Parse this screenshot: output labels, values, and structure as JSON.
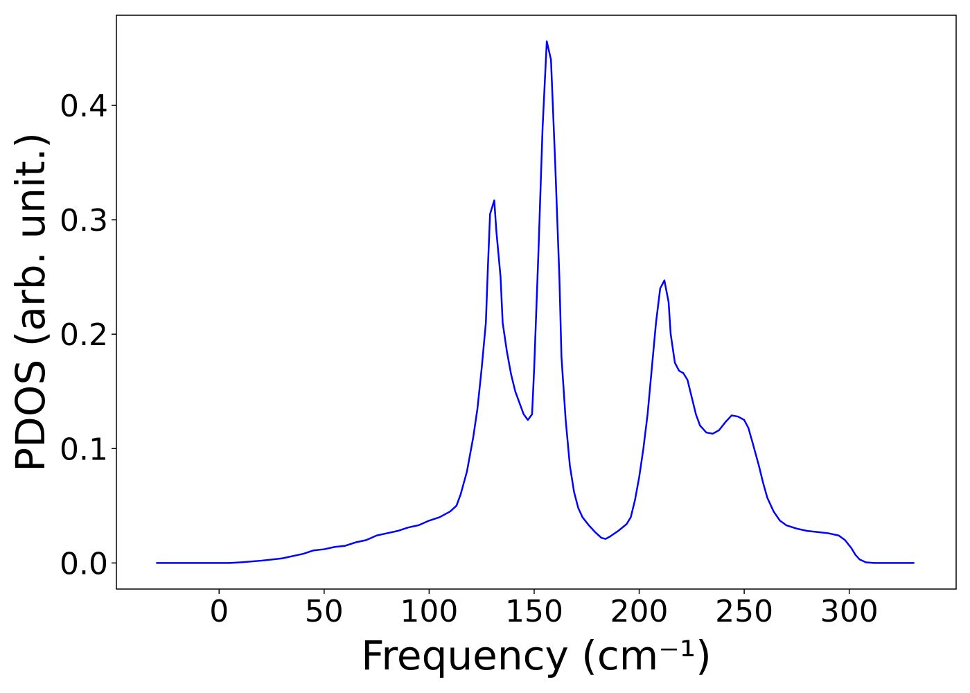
{
  "chart_data": {
    "type": "line",
    "xlabel": "Frequency (cm⁻¹)",
    "ylabel": "PDOS (arb. unit.)",
    "xlim": [
      -48.9,
      350.9
    ],
    "ylim": [
      -0.0228,
      0.4788
    ],
    "xticks": [
      0,
      50,
      100,
      150,
      200,
      250,
      300
    ],
    "yticks": [
      {
        "value": 0,
        "label": "0.0"
      },
      0.1,
      0.2,
      0.3,
      0.4
    ],
    "x": [
      -30,
      0,
      5,
      10,
      20,
      30,
      40,
      45,
      50,
      55,
      60,
      65,
      70,
      75,
      80,
      85,
      90,
      95,
      100,
      105,
      110,
      113,
      115,
      118,
      121,
      123,
      125,
      127,
      128,
      129,
      131,
      132,
      134,
      135,
      137,
      139,
      141,
      143,
      145,
      147,
      149,
      150,
      152,
      154,
      156,
      158,
      160,
      162,
      163,
      165,
      167,
      169,
      171,
      173,
      176,
      179,
      182,
      184,
      186,
      190,
      194,
      196,
      198,
      200,
      202,
      204,
      206,
      208,
      210,
      212,
      214,
      215,
      217,
      219,
      221,
      223,
      225,
      227,
      229,
      232,
      235,
      238,
      241,
      244,
      247,
      250,
      252,
      254,
      257,
      259,
      261,
      264,
      267,
      270,
      275,
      280,
      285,
      290,
      295,
      298,
      301,
      303,
      305,
      308,
      312,
      320,
      331
    ],
    "series": [
      {
        "color": "#0000ff",
        "values": [
          0,
          0,
          0,
          0.0005,
          0.002,
          0.004,
          0.008,
          0.011,
          0.012,
          0.014,
          0.015,
          0.018,
          0.02,
          0.024,
          0.026,
          0.028,
          0.031,
          0.033,
          0.037,
          0.04,
          0.045,
          0.05,
          0.06,
          0.08,
          0.11,
          0.135,
          0.17,
          0.21,
          0.26,
          0.305,
          0.317,
          0.29,
          0.25,
          0.21,
          0.185,
          0.165,
          0.15,
          0.14,
          0.13,
          0.125,
          0.13,
          0.17,
          0.27,
          0.38,
          0.456,
          0.44,
          0.35,
          0.25,
          0.18,
          0.125,
          0.085,
          0.062,
          0.048,
          0.04,
          0.033,
          0.027,
          0.022,
          0.021,
          0.023,
          0.028,
          0.034,
          0.04,
          0.055,
          0.075,
          0.1,
          0.13,
          0.17,
          0.21,
          0.24,
          0.247,
          0.228,
          0.2,
          0.175,
          0.168,
          0.166,
          0.16,
          0.145,
          0.13,
          0.12,
          0.114,
          0.113,
          0.116,
          0.123,
          0.129,
          0.128,
          0.125,
          0.118,
          0.105,
          0.085,
          0.07,
          0.057,
          0.045,
          0.037,
          0.033,
          0.03,
          0.028,
          0.027,
          0.026,
          0.024,
          0.02,
          0.013,
          0.007,
          0.003,
          0.0005,
          0,
          0,
          0
        ]
      }
    ]
  }
}
